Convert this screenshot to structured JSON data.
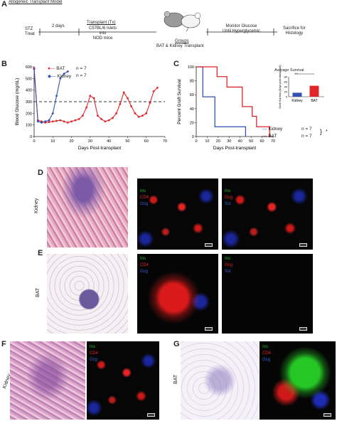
{
  "panel_a": {
    "letter": "A",
    "model_title": "Allogeneic Transplant Model",
    "stz_treat": "STZ\nTreat",
    "interval": "2 days",
    "transplant_title": "Transplant (Tx)",
    "transplant_detail": "C57BL/6 Islets\ninto\nNOD mice",
    "groups_title": "Groups",
    "groups_detail": "BAT & Kidney Transplant",
    "monitor": "Monitor Glucose\nUntil Hyperglycemic",
    "sacrifice": "Sacrifice for\nHistology"
  },
  "panel_b": {
    "letter": "B",
    "legend": [
      {
        "label": "BAT",
        "n": "n = 7",
        "color": "#e0262a"
      },
      {
        "label": "Kidney",
        "n": "n = 7",
        "color": "#3451b0"
      }
    ]
  },
  "panel_c": {
    "letter": "C",
    "inset_title": "Average Survival",
    "inset_sig": "**",
    "inset_ylabel": "Graft Survival\n(Days post-transplant)",
    "legend": [
      {
        "label": "Kidney",
        "n": "n = 7",
        "color": "#3451b0"
      },
      {
        "label": "BAT",
        "n": "n = 7",
        "color": "#e0262a"
      }
    ],
    "sig": "*"
  },
  "chart_data": [
    {
      "type": "line",
      "panel": "B",
      "xlabel": "Days Post-transplant",
      "ylabel": "Blood Glucose (mg/dL)",
      "xlim": [
        0,
        70
      ],
      "ylim": [
        0,
        600
      ],
      "xticks": [
        0,
        10,
        20,
        30,
        40,
        50,
        60,
        70
      ],
      "yticks": [
        0,
        100,
        200,
        300,
        400,
        500,
        600
      ],
      "threshold": 300,
      "series": [
        {
          "name": "BAT",
          "color": "#e0262a",
          "x": [
            0,
            2,
            4,
            6,
            8,
            10,
            12,
            14,
            16,
            18,
            20,
            22,
            24,
            26,
            28,
            30,
            32,
            34,
            36,
            38,
            40,
            42,
            44,
            46,
            48,
            50,
            52,
            54,
            56,
            58,
            60,
            62,
            64,
            66
          ],
          "y": [
            590,
            140,
            130,
            120,
            125,
            130,
            135,
            140,
            130,
            120,
            130,
            140,
            150,
            180,
            250,
            350,
            330,
            180,
            150,
            130,
            140,
            160,
            200,
            280,
            380,
            330,
            260,
            200,
            170,
            180,
            200,
            290,
            390,
            420
          ]
        },
        {
          "name": "Kidney",
          "color": "#3451b0",
          "x": [
            0,
            2,
            4,
            6,
            8,
            10,
            12,
            14,
            16,
            18
          ],
          "y": [
            580,
            130,
            120,
            130,
            140,
            200,
            350,
            500,
            540,
            560
          ]
        }
      ]
    },
    {
      "type": "line",
      "panel": "C",
      "xlabel": "Days Post-transplant",
      "ylabel": "Percent Graft Survival",
      "xlim": [
        0,
        70
      ],
      "ylim": [
        0,
        100
      ],
      "xticks": [
        0,
        10,
        20,
        30,
        40,
        50,
        60,
        70
      ],
      "yticks": [
        0,
        20,
        40,
        60,
        80,
        100
      ],
      "series": [
        {
          "name": "Kidney",
          "color": "#3451b0",
          "x": [
            0,
            6,
            6,
            17,
            17,
            45,
            45
          ],
          "y": [
            100,
            100,
            57,
            57,
            14,
            14,
            0
          ]
        },
        {
          "name": "BAT",
          "color": "#e0262a",
          "x": [
            0,
            19,
            19,
            28,
            28,
            42,
            42,
            51,
            51,
            55,
            55,
            67,
            67
          ],
          "y": [
            100,
            100,
            86,
            86,
            71,
            71,
            43,
            43,
            29,
            29,
            14,
            14,
            0
          ]
        }
      ]
    },
    {
      "type": "bar",
      "panel": "C-inset",
      "title": "Average Survival",
      "ylabel": "Graft Survival (Days post-transplant)",
      "categories": [
        "Kidney",
        "BAT"
      ],
      "values": [
        16,
        44
      ],
      "colors": [
        "#3451b0",
        "#e0262a"
      ],
      "ylim": [
        0,
        80
      ],
      "yticks": [
        0,
        20,
        40,
        60,
        80
      ]
    }
  ],
  "panel_d": {
    "letter": "D",
    "side_label": "Kidney",
    "stain1": [
      "Ins",
      "CD4",
      "Gcg"
    ],
    "stain2": [
      "Ins",
      "Gcg",
      "Sst"
    ]
  },
  "panel_e": {
    "letter": "E",
    "side_label": "BAT",
    "stain1": [
      "Ins",
      "CD4",
      "Gcg"
    ],
    "stain2": [
      "Ins",
      "Gcg",
      "Sst"
    ]
  },
  "panel_f": {
    "letter": "F",
    "side_label": "Kidney",
    "stain": [
      "Ins",
      "CD4",
      "Gcg"
    ]
  },
  "panel_g": {
    "letter": "G",
    "side_label": "BAT",
    "stain": [
      "Ins",
      "CD4",
      "Gcg"
    ]
  },
  "colors": {
    "green": "#2bb52b",
    "red": "#e0262a",
    "blue": "#3451b0"
  }
}
